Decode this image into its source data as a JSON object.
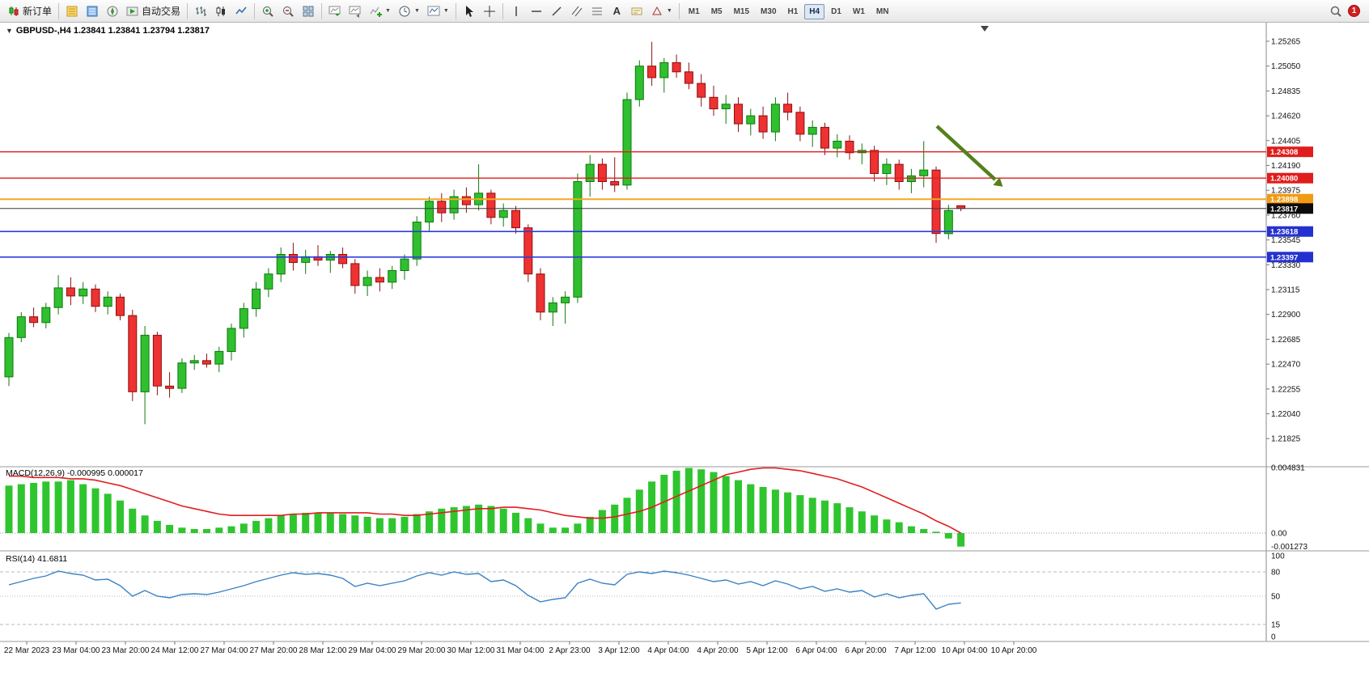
{
  "toolbar": {
    "new_order_label": "新订单",
    "auto_trading_label": "自动交易",
    "text_tool_label": "A",
    "timeframes": [
      "M1",
      "M5",
      "M15",
      "M30",
      "H1",
      "H4",
      "D1",
      "W1",
      "MN"
    ],
    "active_timeframe": "H4",
    "notification_count": "1"
  },
  "chart": {
    "title": "GBPUSD-,H4 1.23841 1.23841 1.23794 1.23817",
    "symbol": "GBPUSD-",
    "timeframe": "H4",
    "ohlc": {
      "open": "1.23841",
      "high": "1.23841",
      "low": "1.23794",
      "close": "1.23817"
    },
    "price_axis_labels": [
      "1.25265",
      "1.25050",
      "1.24835",
      "1.24620",
      "1.24405",
      "1.24190",
      "1.23975",
      "1.23760",
      "1.23545",
      "1.23330",
      "1.23115",
      "1.22900",
      "1.22685",
      "1.22470",
      "1.22255",
      "1.22040",
      "1.21825"
    ],
    "time_labels": [
      "22 Mar 2023",
      "23 Mar 04:00",
      "23 Mar 20:00",
      "24 Mar 12:00",
      "27 Mar 04:00",
      "27 Mar 20:00",
      "28 Mar 12:00",
      "29 Mar 04:00",
      "29 Mar 20:00",
      "30 Mar 12:00",
      "31 Mar 04:00",
      "2 Apr 23:00",
      "3 Apr 12:00",
      "4 Apr 04:00",
      "4 Apr 20:00",
      "5 Apr 12:00",
      "6 Apr 04:00",
      "6 Apr 20:00",
      "7 Apr 12:00",
      "10 Apr 04:00",
      "10 Apr 20:00"
    ],
    "levels": [
      {
        "price": 1.24308,
        "label": "1.24308",
        "badge": "#e01d1d",
        "line": "#e01d1d",
        "width": 1.4
      },
      {
        "price": 1.2408,
        "label": "1.24080",
        "badge": "#e01d1d",
        "line": "#e01d1d",
        "width": 1.4
      },
      {
        "price": 1.23898,
        "label": "1.23898",
        "badge": "#f29a11",
        "line": "#f5a623",
        "width": 2
      },
      {
        "price": 1.23618,
        "label": "1.23618",
        "badge": "#2531cf",
        "line": "#2d3cdc",
        "width": 1.6
      },
      {
        "price": 1.23397,
        "label": "1.23397",
        "badge": "#2531cf",
        "line": "#2d3cdc",
        "width": 1.6
      }
    ],
    "current_price": {
      "price": 1.23817,
      "label": "1.23817",
      "badge": "#0c0c0c",
      "line": "#3c3c3c"
    },
    "colors": {
      "up": "#2fbf2f",
      "up_border": "#0e7a0e",
      "down": "#ee3131",
      "down_border": "#8f1010"
    },
    "arrow_color": "#55801c",
    "candles": [
      [
        1.2236,
        1.2274,
        1.2228,
        1.227
      ],
      [
        1.227,
        1.2292,
        1.2266,
        1.2288
      ],
      [
        1.2288,
        1.2296,
        1.2279,
        1.2283
      ],
      [
        1.2283,
        1.23,
        1.2278,
        1.2296
      ],
      [
        1.2296,
        1.2324,
        1.229,
        1.2313
      ],
      [
        1.2313,
        1.2322,
        1.2298,
        1.2306
      ],
      [
        1.2306,
        1.2318,
        1.2299,
        1.2312
      ],
      [
        1.2312,
        1.2316,
        1.2292,
        1.2297
      ],
      [
        1.2297,
        1.231,
        1.229,
        1.2305
      ],
      [
        1.2305,
        1.2308,
        1.2285,
        1.2289
      ],
      [
        1.2289,
        1.2294,
        1.2215,
        1.2223
      ],
      [
        1.2223,
        1.228,
        1.2195,
        1.2272
      ],
      [
        1.2272,
        1.2275,
        1.222,
        1.2228
      ],
      [
        1.2228,
        1.224,
        1.2218,
        1.2226
      ],
      [
        1.2226,
        1.2252,
        1.2222,
        1.2248
      ],
      [
        1.2248,
        1.2255,
        1.2242,
        1.225
      ],
      [
        1.225,
        1.2256,
        1.2244,
        1.2247
      ],
      [
        1.2247,
        1.2262,
        1.224,
        1.2258
      ],
      [
        1.2258,
        1.2282,
        1.225,
        1.2278
      ],
      [
        1.2278,
        1.23,
        1.227,
        1.2295
      ],
      [
        1.2295,
        1.2318,
        1.2288,
        1.2312
      ],
      [
        1.2312,
        1.233,
        1.2305,
        1.2325
      ],
      [
        1.2325,
        1.2348,
        1.2318,
        1.2342
      ],
      [
        1.2342,
        1.2352,
        1.2328,
        1.2335
      ],
      [
        1.2335,
        1.2346,
        1.2325,
        1.234
      ],
      [
        1.234,
        1.235,
        1.2332,
        1.2337
      ],
      [
        1.2337,
        1.2345,
        1.2326,
        1.2342
      ],
      [
        1.2342,
        1.2348,
        1.233,
        1.2334
      ],
      [
        1.2334,
        1.2338,
        1.2308,
        1.2315
      ],
      [
        1.2315,
        1.2328,
        1.2306,
        1.2322
      ],
      [
        1.2322,
        1.233,
        1.231,
        1.2318
      ],
      [
        1.2318,
        1.2332,
        1.2312,
        1.2328
      ],
      [
        1.2328,
        1.2342,
        1.232,
        1.2338
      ],
      [
        1.2338,
        1.2375,
        1.2332,
        1.237
      ],
      [
        1.237,
        1.2392,
        1.2362,
        1.2388
      ],
      [
        1.2388,
        1.2395,
        1.237,
        1.2378
      ],
      [
        1.2378,
        1.2398,
        1.2372,
        1.2392
      ],
      [
        1.2392,
        1.24,
        1.2378,
        1.2385
      ],
      [
        1.2385,
        1.242,
        1.238,
        1.2395
      ],
      [
        1.2395,
        1.2398,
        1.2368,
        1.2374
      ],
      [
        1.2374,
        1.2386,
        1.2366,
        1.238
      ],
      [
        1.238,
        1.2384,
        1.236,
        1.2365
      ],
      [
        1.2365,
        1.2368,
        1.2318,
        1.2325
      ],
      [
        1.2325,
        1.233,
        1.2285,
        1.2292
      ],
      [
        1.2292,
        1.2305,
        1.228,
        1.23
      ],
      [
        1.23,
        1.231,
        1.2282,
        1.2305
      ],
      [
        1.2305,
        1.2412,
        1.23,
        1.2405
      ],
      [
        1.2405,
        1.2428,
        1.2392,
        1.242
      ],
      [
        1.242,
        1.2425,
        1.2398,
        1.2405
      ],
      [
        1.2405,
        1.2426,
        1.2396,
        1.2402
      ],
      [
        1.2402,
        1.2482,
        1.2398,
        1.2476
      ],
      [
        1.2476,
        1.251,
        1.247,
        1.2505
      ],
      [
        1.2505,
        1.2526,
        1.2488,
        1.2495
      ],
      [
        1.2495,
        1.2512,
        1.2482,
        1.2508
      ],
      [
        1.2508,
        1.2515,
        1.2495,
        1.25
      ],
      [
        1.25,
        1.2508,
        1.2485,
        1.249
      ],
      [
        1.249,
        1.2498,
        1.247,
        1.2478
      ],
      [
        1.2478,
        1.2488,
        1.2462,
        1.2468
      ],
      [
        1.2468,
        1.248,
        1.2455,
        1.2472
      ],
      [
        1.2472,
        1.2478,
        1.2448,
        1.2455
      ],
      [
        1.2455,
        1.2468,
        1.2445,
        1.2462
      ],
      [
        1.2462,
        1.247,
        1.2442,
        1.2448
      ],
      [
        1.2448,
        1.2478,
        1.244,
        1.2472
      ],
      [
        1.2472,
        1.2482,
        1.2458,
        1.2465
      ],
      [
        1.2465,
        1.247,
        1.244,
        1.2446
      ],
      [
        1.2446,
        1.2458,
        1.2435,
        1.2452
      ],
      [
        1.2452,
        1.2456,
        1.2428,
        1.2434
      ],
      [
        1.2434,
        1.2446,
        1.2426,
        1.244
      ],
      [
        1.244,
        1.2445,
        1.2424,
        1.243
      ],
      [
        1.243,
        1.2438,
        1.242,
        1.2432
      ],
      [
        1.2432,
        1.2436,
        1.2405,
        1.2412
      ],
      [
        1.2412,
        1.2425,
        1.2402,
        1.242
      ],
      [
        1.242,
        1.2424,
        1.2398,
        1.2405
      ],
      [
        1.2405,
        1.2416,
        1.2395,
        1.241
      ],
      [
        1.241,
        1.244,
        1.24,
        1.2415
      ],
      [
        1.2415,
        1.2418,
        1.2352,
        1.236
      ],
      [
        1.236,
        1.2385,
        1.2355,
        1.238
      ],
      [
        1.23841,
        1.23841,
        1.23794,
        1.23817
      ]
    ]
  },
  "macd": {
    "label": "MACD(12,26,9) -0.000995 0.000017",
    "values_text": {
      "macd": "-0.000995",
      "signal": "0.000017"
    },
    "axis_labels": [
      {
        "value": 0.004831,
        "label": "0.004831"
      },
      {
        "value": 0,
        "label": "0.00"
      },
      {
        "value": -0.001273,
        "label": "-0.001273"
      }
    ],
    "histogram": [
      0.0035,
      0.0036,
      0.0037,
      0.0038,
      0.0038,
      0.0039,
      0.0036,
      0.0033,
      0.0029,
      0.0024,
      0.0018,
      0.0013,
      0.0009,
      0.0006,
      0.0004,
      0.0003,
      0.0003,
      0.0004,
      0.0005,
      0.0007,
      0.0009,
      0.0011,
      0.0013,
      0.0014,
      0.0015,
      0.0015,
      0.0015,
      0.0014,
      0.0013,
      0.0012,
      0.0011,
      0.0011,
      0.0012,
      0.0014,
      0.0016,
      0.0018,
      0.0019,
      0.002,
      0.0021,
      0.002,
      0.0018,
      0.0015,
      0.0011,
      0.0007,
      0.0004,
      0.0004,
      0.0007,
      0.0012,
      0.0017,
      0.0021,
      0.0026,
      0.0032,
      0.0038,
      0.0043,
      0.0046,
      0.0048,
      0.0047,
      0.0045,
      0.0042,
      0.0039,
      0.0036,
      0.0034,
      0.0032,
      0.003,
      0.0028,
      0.0026,
      0.0024,
      0.0022,
      0.0019,
      0.0016,
      0.0013,
      0.001,
      0.0008,
      0.0005,
      0.0003,
      0.0001,
      -0.0004,
      -0.000995
    ],
    "signal": [
      0.0042,
      0.0042,
      0.0041,
      0.0041,
      0.0041,
      0.004,
      0.004,
      0.0039,
      0.0037,
      0.0035,
      0.0032,
      0.0029,
      0.0026,
      0.0023,
      0.002,
      0.0018,
      0.0016,
      0.0014,
      0.0013,
      0.0013,
      0.0013,
      0.0013,
      0.0013,
      0.0014,
      0.0014,
      0.0015,
      0.0015,
      0.0015,
      0.0015,
      0.0015,
      0.0014,
      0.0014,
      0.0013,
      0.0013,
      0.0014,
      0.0015,
      0.0016,
      0.0017,
      0.0018,
      0.0018,
      0.0019,
      0.0019,
      0.0018,
      0.0017,
      0.0015,
      0.0013,
      0.0012,
      0.0011,
      0.0011,
      0.0012,
      0.0014,
      0.0016,
      0.0019,
      0.0023,
      0.0027,
      0.0031,
      0.0035,
      0.0039,
      0.0043,
      0.0045,
      0.0047,
      0.0048,
      0.0048,
      0.0047,
      0.0046,
      0.0044,
      0.0042,
      0.004,
      0.0037,
      0.0034,
      0.003,
      0.0026,
      0.0022,
      0.0018,
      0.0014,
      0.0009,
      0.0005,
      0.0
    ]
  },
  "rsi": {
    "label": "RSI(14) 41.6811",
    "current_value": "41.6811",
    "axis_labels": [
      {
        "value": 100,
        "label": "100"
      },
      {
        "value": 80,
        "label": "80"
      },
      {
        "value": 50,
        "label": "50"
      },
      {
        "value": 15,
        "label": "15"
      },
      {
        "value": 0,
        "label": "0"
      }
    ],
    "levels": [
      80,
      50,
      15
    ],
    "values": [
      64,
      68,
      72,
      75,
      81,
      78,
      76,
      70,
      71,
      63,
      50,
      57,
      50,
      48,
      52,
      53,
      52,
      55,
      59,
      63,
      68,
      72,
      76,
      79,
      77,
      78,
      76,
      72,
      62,
      66,
      63,
      66,
      69,
      75,
      79,
      76,
      80,
      77,
      78,
      68,
      70,
      63,
      51,
      43,
      46,
      48,
      66,
      71,
      66,
      64,
      77,
      80,
      78,
      81,
      79,
      76,
      72,
      68,
      70,
      65,
      68,
      63,
      69,
      65,
      59,
      62,
      56,
      59,
      55,
      57,
      49,
      53,
      48,
      51,
      53,
      34,
      40,
      41.68
    ]
  }
}
